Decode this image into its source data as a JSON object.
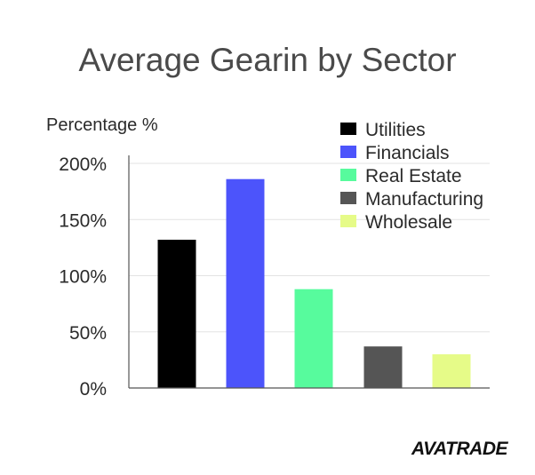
{
  "chart_data": {
    "type": "bar",
    "title": "Average Gearin by Sector",
    "ylabel": "Percentage %",
    "xlabel": "",
    "categories": [
      "Utilities",
      "Financials",
      "Real Estate",
      "Manufacturing",
      "Wholesale"
    ],
    "values": [
      132,
      186,
      88,
      37,
      30
    ],
    "colors": [
      "#000000",
      "#4c54fb",
      "#57fb9d",
      "#555555",
      "#e6fb88"
    ],
    "ylim": [
      0,
      200
    ],
    "yticks": [
      0,
      50,
      100,
      150,
      200
    ],
    "ytick_labels": [
      "0%",
      "50%",
      "100%",
      "150%",
      "200%"
    ],
    "grid": true,
    "legend_position": "top-right"
  },
  "logo": {
    "text": "AVATRADE"
  }
}
